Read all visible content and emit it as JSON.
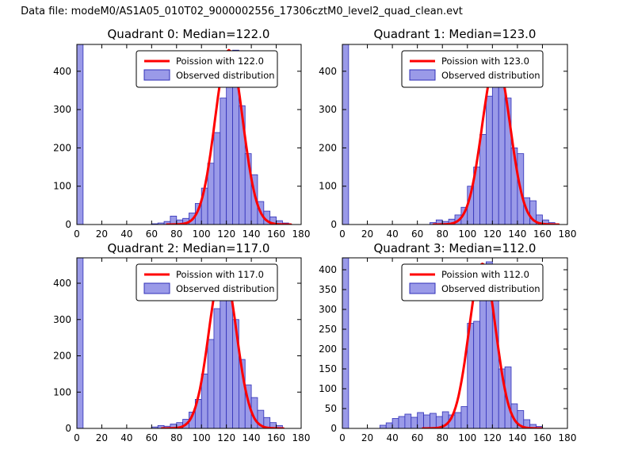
{
  "figure_title": "Data file: modeM0/AS1A05_010T02_9000002556_17306cztM0_level2_quad_clean.evt",
  "colors": {
    "hist_fill": "#9a9ae8",
    "hist_edge": "#3030b8",
    "curve": "#ff0000",
    "axis": "#000000",
    "legend_border": "#000000",
    "background": "#ffffff"
  },
  "chart_data": [
    {
      "type": "bar",
      "subtype": "histogram",
      "overlay": "poisson-line",
      "title": "Quadrant 0: Median=122.0",
      "median": 122.0,
      "legend": [
        "Poission with 122.0",
        "Observed distribution"
      ],
      "xlabel": "",
      "ylabel": "",
      "xlim": [
        0,
        180
      ],
      "ylim": [
        0,
        470
      ],
      "xticks": [
        0,
        20,
        40,
        60,
        80,
        100,
        120,
        140,
        160,
        180
      ],
      "yticks": [
        0,
        100,
        200,
        300,
        400
      ],
      "bin_width": 5,
      "bins": [
        [
          0,
          500
        ],
        [
          60,
          2
        ],
        [
          65,
          4
        ],
        [
          70,
          8
        ],
        [
          75,
          22
        ],
        [
          80,
          12
        ],
        [
          85,
          16
        ],
        [
          90,
          30
        ],
        [
          95,
          55
        ],
        [
          100,
          95
        ],
        [
          105,
          160
        ],
        [
          110,
          240
        ],
        [
          115,
          330
        ],
        [
          120,
          430
        ],
        [
          125,
          455
        ],
        [
          130,
          310
        ],
        [
          135,
          185
        ],
        [
          140,
          130
        ],
        [
          145,
          60
        ],
        [
          150,
          35
        ],
        [
          155,
          20
        ],
        [
          160,
          10
        ],
        [
          165,
          4
        ]
      ],
      "poisson": {
        "lambda": 122,
        "peak": 455
      }
    },
    {
      "type": "bar",
      "subtype": "histogram",
      "overlay": "poisson-line",
      "title": "Quadrant 1: Median=123.0",
      "median": 123.0,
      "legend": [
        "Poission with 123.0",
        "Observed distribution"
      ],
      "xlabel": "",
      "ylabel": "",
      "xlim": [
        0,
        180
      ],
      "ylim": [
        0,
        470
      ],
      "xticks": [
        0,
        20,
        40,
        60,
        80,
        100,
        120,
        140,
        160,
        180
      ],
      "yticks": [
        0,
        100,
        200,
        300,
        400
      ],
      "bin_width": 5,
      "bins": [
        [
          0,
          500
        ],
        [
          70,
          5
        ],
        [
          75,
          12
        ],
        [
          80,
          8
        ],
        [
          85,
          14
        ],
        [
          90,
          25
        ],
        [
          95,
          45
        ],
        [
          100,
          100
        ],
        [
          105,
          150
        ],
        [
          110,
          235
        ],
        [
          115,
          335
        ],
        [
          120,
          420
        ],
        [
          125,
          430
        ],
        [
          130,
          330
        ],
        [
          135,
          200
        ],
        [
          140,
          185
        ],
        [
          145,
          70
        ],
        [
          150,
          62
        ],
        [
          155,
          25
        ],
        [
          160,
          12
        ],
        [
          165,
          5
        ]
      ],
      "poisson": {
        "lambda": 123,
        "peak": 430
      }
    },
    {
      "type": "bar",
      "subtype": "histogram",
      "overlay": "poisson-line",
      "title": "Quadrant 2: Median=117.0",
      "median": 117.0,
      "legend": [
        "Poission with 117.0",
        "Observed distribution"
      ],
      "xlabel": "",
      "ylabel": "",
      "xlim": [
        0,
        180
      ],
      "ylim": [
        0,
        470
      ],
      "xticks": [
        0,
        20,
        40,
        60,
        80,
        100,
        120,
        140,
        160,
        180
      ],
      "yticks": [
        0,
        100,
        200,
        300,
        400
      ],
      "bin_width": 5,
      "bins": [
        [
          0,
          500
        ],
        [
          60,
          4
        ],
        [
          65,
          8
        ],
        [
          70,
          6
        ],
        [
          75,
          12
        ],
        [
          80,
          16
        ],
        [
          85,
          25
        ],
        [
          90,
          45
        ],
        [
          95,
          80
        ],
        [
          100,
          150
        ],
        [
          105,
          245
        ],
        [
          110,
          330
        ],
        [
          115,
          450
        ],
        [
          120,
          425
        ],
        [
          125,
          300
        ],
        [
          130,
          190
        ],
        [
          135,
          120
        ],
        [
          140,
          85
        ],
        [
          145,
          50
        ],
        [
          150,
          30
        ],
        [
          155,
          16
        ],
        [
          160,
          8
        ]
      ],
      "poisson": {
        "lambda": 117,
        "peak": 450
      }
    },
    {
      "type": "bar",
      "subtype": "histogram",
      "overlay": "poisson-line",
      "title": "Quadrant 3: Median=112.0",
      "median": 112.0,
      "legend": [
        "Poission with 112.0",
        "Observed distribution"
      ],
      "xlabel": "",
      "ylabel": "",
      "xlim": [
        0,
        180
      ],
      "ylim": [
        0,
        430
      ],
      "xticks": [
        0,
        20,
        40,
        60,
        80,
        100,
        120,
        140,
        160,
        180
      ],
      "yticks": [
        0,
        50,
        100,
        150,
        200,
        250,
        300,
        350,
        400
      ],
      "bin_width": 5,
      "bins": [
        [
          0,
          450
        ],
        [
          30,
          8
        ],
        [
          35,
          14
        ],
        [
          40,
          25
        ],
        [
          45,
          30
        ],
        [
          50,
          36
        ],
        [
          55,
          28
        ],
        [
          60,
          40
        ],
        [
          65,
          34
        ],
        [
          70,
          38
        ],
        [
          75,
          30
        ],
        [
          80,
          42
        ],
        [
          85,
          34
        ],
        [
          90,
          40
        ],
        [
          95,
          55
        ],
        [
          100,
          265
        ],
        [
          105,
          270
        ],
        [
          110,
          380
        ],
        [
          115,
          420
        ],
        [
          120,
          395
        ],
        [
          125,
          150
        ],
        [
          130,
          155
        ],
        [
          135,
          62
        ],
        [
          140,
          45
        ],
        [
          145,
          22
        ],
        [
          150,
          10
        ],
        [
          155,
          5
        ]
      ],
      "poisson": {
        "lambda": 112,
        "peak": 415
      }
    }
  ]
}
